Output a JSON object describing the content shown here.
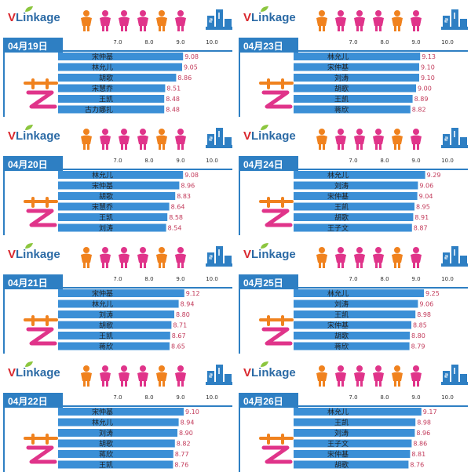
{
  "brand": {
    "logo_v": "V",
    "logo_rest": "Linkage"
  },
  "colors": {
    "bar": "#3b8fd6",
    "date_bar": "#2e7fc3",
    "rank": "#d9262c",
    "value": "#c23a5a",
    "person_orange": "#f0821e",
    "person_pink": "#e0348a"
  },
  "chart_data": [
    {
      "type": "bar",
      "orientation": "horizontal",
      "date": "04月19日",
      "xlim": [
        7.0,
        10.0
      ],
      "ticks": [
        "7.0",
        "8.0",
        "9.0",
        "10.0"
      ],
      "ranks": [
        "1",
        "2",
        "3",
        "4",
        "5",
        "6"
      ],
      "categories": [
        "宋仲基",
        "林允儿",
        "胡歌",
        "宋慧乔",
        "王凯",
        "古力娜扎"
      ],
      "values": [
        9.08,
        9.05,
        8.86,
        8.51,
        8.48,
        8.48
      ],
      "value_labels": [
        "9.08",
        "9.05",
        "8.86",
        "8.51",
        "8.48",
        "8.48"
      ]
    },
    {
      "type": "bar",
      "orientation": "horizontal",
      "date": "04月23日",
      "xlim": [
        7.0,
        10.0
      ],
      "ticks": [
        "7.0",
        "8.0",
        "9.0",
        "10.0"
      ],
      "ranks": [
        "1",
        "2",
        "3",
        "4",
        "5",
        "6"
      ],
      "categories": [
        "林允儿",
        "宋仲基",
        "刘涛",
        "胡歌",
        "王凯",
        "蒋欣"
      ],
      "values": [
        9.13,
        9.1,
        9.1,
        9.0,
        8.89,
        8.82
      ],
      "value_labels": [
        "9.13",
        "9.10",
        "9.10",
        "9.00",
        "8.89",
        "8.82"
      ]
    },
    {
      "type": "bar",
      "orientation": "horizontal",
      "date": "04月20日",
      "xlim": [
        7.0,
        10.0
      ],
      "ticks": [
        "7.0",
        "8.0",
        "9.0",
        "10.0"
      ],
      "ranks": [
        "1",
        "2",
        "3",
        "4",
        "5",
        "6"
      ],
      "categories": [
        "林允儿",
        "宋仲基",
        "胡歌",
        "宋慧乔",
        "王凯",
        "刘涛"
      ],
      "values": [
        9.08,
        8.96,
        8.83,
        8.64,
        8.58,
        8.54
      ],
      "value_labels": [
        "9.08",
        "8.96",
        "8.83",
        "8.64",
        "8.58",
        "8.54"
      ]
    },
    {
      "type": "bar",
      "orientation": "horizontal",
      "date": "04月24日",
      "xlim": [
        7.0,
        10.0
      ],
      "ticks": [
        "7.0",
        "8.0",
        "9.0",
        "10.0"
      ],
      "ranks": [
        "1",
        "2",
        "3",
        "4",
        "5",
        "6"
      ],
      "categories": [
        "林允儿",
        "刘涛",
        "宋仲基",
        "王凯",
        "胡歌",
        "王子文"
      ],
      "values": [
        9.29,
        9.06,
        9.04,
        8.95,
        8.91,
        8.87
      ],
      "value_labels": [
        "9.29",
        "9.06",
        "9.04",
        "8.95",
        "8.91",
        "8.87"
      ]
    },
    {
      "type": "bar",
      "orientation": "horizontal",
      "date": "04月21日",
      "xlim": [
        7.0,
        10.0
      ],
      "ticks": [
        "7.0",
        "8.0",
        "9.0",
        "10.0"
      ],
      "ranks": [
        "1",
        "2",
        "3",
        "4",
        "5",
        "6"
      ],
      "categories": [
        "宋仲基",
        "林允儿",
        "刘涛",
        "胡歌",
        "王凯",
        "蒋欣"
      ],
      "values": [
        9.12,
        8.94,
        8.8,
        8.71,
        8.67,
        8.65
      ],
      "value_labels": [
        "9.12",
        "8.94",
        "8.80",
        "8.71",
        "8.67",
        "8.65"
      ]
    },
    {
      "type": "bar",
      "orientation": "horizontal",
      "date": "04月25日",
      "xlim": [
        7.0,
        10.0
      ],
      "ticks": [
        "7.0",
        "8.0",
        "9.0",
        "10.0"
      ],
      "ranks": [
        "1",
        "2",
        "3",
        "4",
        "5",
        "6"
      ],
      "categories": [
        "林允儿",
        "刘涛",
        "王凯",
        "宋仲基",
        "胡歌",
        "蒋欣"
      ],
      "values": [
        9.25,
        9.06,
        8.98,
        8.85,
        8.8,
        8.79
      ],
      "value_labels": [
        "9.25",
        "9.06",
        "8.98",
        "8.85",
        "8.80",
        "8.79"
      ]
    },
    {
      "type": "bar",
      "orientation": "horizontal",
      "date": "04月22日",
      "xlim": [
        7.0,
        10.0
      ],
      "ticks": [
        "7.0",
        "8.0",
        "9.0",
        "10.0"
      ],
      "ranks": [
        "1",
        "2",
        "3",
        "4",
        "5",
        "6"
      ],
      "categories": [
        "宋仲基",
        "林允儿",
        "刘涛",
        "胡歌",
        "蒋欣",
        "王凯"
      ],
      "values": [
        9.1,
        8.94,
        8.9,
        8.82,
        8.77,
        8.76
      ],
      "value_labels": [
        "9.10",
        "8.94",
        "8.90",
        "8.82",
        "8.77",
        "8.76"
      ]
    },
    {
      "type": "bar",
      "orientation": "horizontal",
      "date": "04月26日",
      "xlim": [
        7.0,
        10.0
      ],
      "ticks": [
        "7.0",
        "8.0",
        "9.0",
        "10.0"
      ],
      "ranks": [
        "1",
        "2",
        "3",
        "4",
        "5",
        "6"
      ],
      "categories": [
        "林允儿",
        "王凯",
        "刘涛",
        "王子文",
        "宋仲基",
        "胡歌"
      ],
      "values": [
        9.17,
        8.98,
        8.96,
        8.86,
        8.81,
        8.76
      ],
      "value_labels": [
        "9.17",
        "8.98",
        "8.96",
        "8.86",
        "8.81",
        "8.76"
      ]
    }
  ]
}
